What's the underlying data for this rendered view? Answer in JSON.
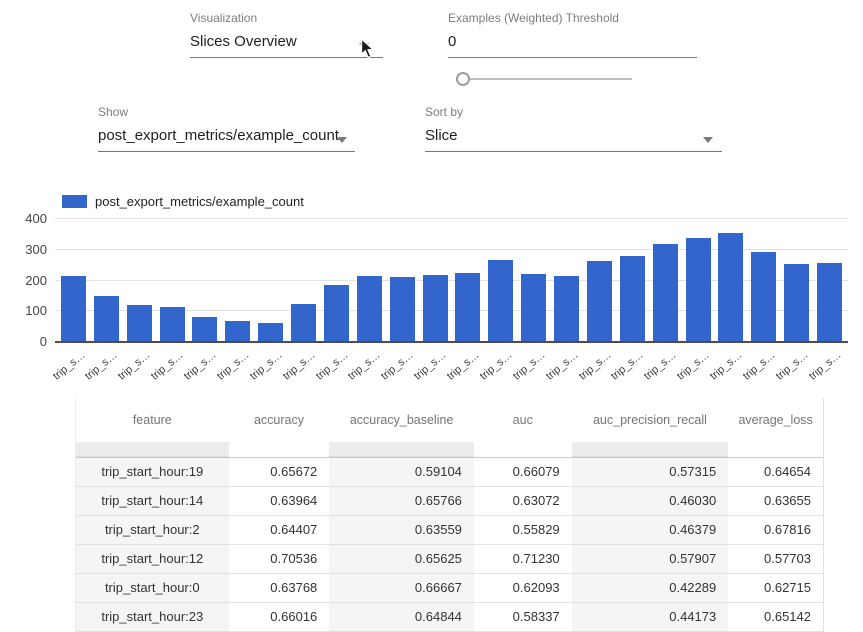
{
  "controls": {
    "visualization": {
      "label": "Visualization",
      "value": "Slices Overview"
    },
    "threshold": {
      "label": "Examples (Weighted) Threshold",
      "value": "0",
      "slider_position": 0
    },
    "show": {
      "label": "Show",
      "value": "post_export_metrics/example_count"
    },
    "sort_by": {
      "label": "Sort by",
      "value": "Slice"
    }
  },
  "chart_data": {
    "type": "bar",
    "legend": "post_export_metrics/example_count",
    "legend_position": "top-left",
    "bar_color": "#3366cc",
    "grid": true,
    "ylim": [
      0,
      400
    ],
    "yticks": [
      0,
      100,
      200,
      300,
      400
    ],
    "categories": [
      "trip_s…",
      "trip_s…",
      "trip_s…",
      "trip_s…",
      "trip_s…",
      "trip_s…",
      "trip_s…",
      "trip_s…",
      "trip_s…",
      "trip_s…",
      "trip_s…",
      "trip_s…",
      "trip_s…",
      "trip_s…",
      "trip_s…",
      "trip_s…",
      "trip_s…",
      "trip_s…",
      "trip_s…",
      "trip_s…",
      "trip_s…",
      "trip_s…",
      "trip_s…",
      "trip_s…"
    ],
    "values": [
      210,
      146,
      117,
      112,
      77,
      66,
      59,
      122,
      183,
      211,
      207,
      215,
      220,
      264,
      218,
      210,
      261,
      278,
      314,
      335,
      352,
      290,
      250,
      255
    ]
  },
  "table": {
    "columns": [
      "feature",
      "accuracy",
      "accuracy_baseline",
      "auc",
      "auc_precision_recall",
      "average_loss"
    ],
    "rows": [
      [
        "trip_start_hour:19",
        "0.65672",
        "0.59104",
        "0.66079",
        "0.57315",
        "0.64654"
      ],
      [
        "trip_start_hour:14",
        "0.63964",
        "0.65766",
        "0.63072",
        "0.46030",
        "0.63655"
      ],
      [
        "trip_start_hour:2",
        "0.64407",
        "0.63559",
        "0.55829",
        "0.46379",
        "0.67816"
      ],
      [
        "trip_start_hour:12",
        "0.70536",
        "0.65625",
        "0.71230",
        "0.57907",
        "0.57703"
      ],
      [
        "trip_start_hour:0",
        "0.63768",
        "0.66667",
        "0.62093",
        "0.42289",
        "0.62715"
      ],
      [
        "trip_start_hour:23",
        "0.66016",
        "0.64844",
        "0.58337",
        "0.44173",
        "0.65142"
      ]
    ]
  }
}
